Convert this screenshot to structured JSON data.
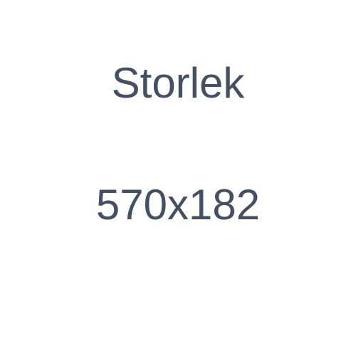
{
  "placeholder": {
    "title": "Storlek",
    "dimensions": "570x182",
    "text_color": "#434f63",
    "background_color": "#ffffff"
  }
}
